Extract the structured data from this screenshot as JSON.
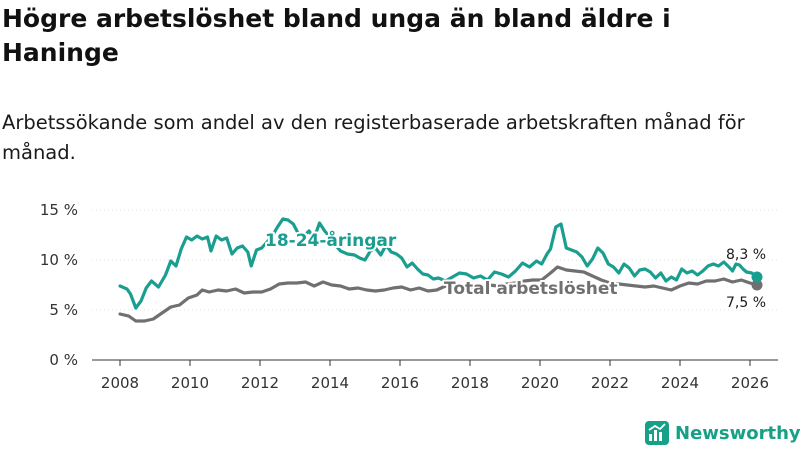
{
  "title": "Högre arbetslöshet bland unga än bland äldre i Haninge",
  "subtitle": "Arbetssökande som andel av den registerbaserade arbetskraften månad för månad.",
  "brand": {
    "name": "Newsworthy",
    "icon": "newsworthy-logo-icon",
    "color": "#16a085"
  },
  "chart_data": {
    "type": "line",
    "title": "Högre arbetslöshet bland unga än bland äldre i Haninge",
    "xlabel": "",
    "ylabel": "",
    "xlim": [
      2007.2,
      2026.8
    ],
    "ylim": [
      0,
      15
    ],
    "grid": true,
    "y_ticks": [
      0,
      5,
      10,
      15
    ],
    "y_tick_labels": [
      "0 %",
      "5 %",
      "10 %",
      "15 %"
    ],
    "x_ticks": [
      2008,
      2010,
      2012,
      2014,
      2016,
      2018,
      2020,
      2022,
      2024,
      2026
    ],
    "x_tick_labels": [
      "2008",
      "2010",
      "2012",
      "2014",
      "2016",
      "2018",
      "2020",
      "2022",
      "2024",
      "2026"
    ],
    "series": [
      {
        "name": "18-24-åringar",
        "color": "#1a9e8f",
        "end_label": "8,3 %",
        "points": [
          [
            2008.0,
            7.4
          ],
          [
            2008.2,
            7.1
          ],
          [
            2008.3,
            6.6
          ],
          [
            2008.45,
            5.2
          ],
          [
            2008.6,
            5.9
          ],
          [
            2008.75,
            7.2
          ],
          [
            2008.9,
            7.9
          ],
          [
            2009.1,
            7.3
          ],
          [
            2009.3,
            8.5
          ],
          [
            2009.45,
            9.9
          ],
          [
            2009.6,
            9.4
          ],
          [
            2009.75,
            11.1
          ],
          [
            2009.9,
            12.3
          ],
          [
            2010.05,
            12.0
          ],
          [
            2010.2,
            12.4
          ],
          [
            2010.35,
            12.1
          ],
          [
            2010.5,
            12.3
          ],
          [
            2010.6,
            10.9
          ],
          [
            2010.75,
            12.4
          ],
          [
            2010.9,
            12.0
          ],
          [
            2011.05,
            12.2
          ],
          [
            2011.2,
            10.6
          ],
          [
            2011.35,
            11.2
          ],
          [
            2011.5,
            11.4
          ],
          [
            2011.65,
            10.8
          ],
          [
            2011.75,
            9.4
          ],
          [
            2011.9,
            11.0
          ],
          [
            2012.05,
            11.2
          ],
          [
            2012.2,
            11.8
          ],
          [
            2012.35,
            12.4
          ],
          [
            2012.5,
            13.3
          ],
          [
            2012.65,
            14.1
          ],
          [
            2012.8,
            14.0
          ],
          [
            2012.95,
            13.6
          ],
          [
            2013.1,
            12.6
          ],
          [
            2013.25,
            12.4
          ],
          [
            2013.4,
            12.9
          ],
          [
            2013.55,
            12.2
          ],
          [
            2013.7,
            13.7
          ],
          [
            2013.85,
            12.9
          ],
          [
            2014.0,
            12.3
          ],
          [
            2014.15,
            11.5
          ],
          [
            2014.3,
            10.9
          ],
          [
            2014.5,
            10.6
          ],
          [
            2014.7,
            10.5
          ],
          [
            2014.85,
            10.2
          ],
          [
            2015.0,
            10.0
          ],
          [
            2015.15,
            10.9
          ],
          [
            2015.3,
            11.2
          ],
          [
            2015.45,
            10.5
          ],
          [
            2015.6,
            11.5
          ],
          [
            2015.75,
            10.8
          ],
          [
            2015.9,
            10.6
          ],
          [
            2016.05,
            10.2
          ],
          [
            2016.2,
            9.3
          ],
          [
            2016.35,
            9.7
          ],
          [
            2016.5,
            9.1
          ],
          [
            2016.65,
            8.6
          ],
          [
            2016.8,
            8.5
          ],
          [
            2016.95,
            8.1
          ],
          [
            2017.1,
            8.2
          ],
          [
            2017.3,
            7.9
          ],
          [
            2017.5,
            8.3
          ],
          [
            2017.7,
            8.7
          ],
          [
            2017.9,
            8.6
          ],
          [
            2018.1,
            8.2
          ],
          [
            2018.3,
            8.4
          ],
          [
            2018.5,
            8.0
          ],
          [
            2018.7,
            8.8
          ],
          [
            2018.9,
            8.6
          ],
          [
            2019.1,
            8.3
          ],
          [
            2019.3,
            8.9
          ],
          [
            2019.5,
            9.7
          ],
          [
            2019.7,
            9.3
          ],
          [
            2019.9,
            9.9
          ],
          [
            2020.05,
            9.6
          ],
          [
            2020.2,
            10.6
          ],
          [
            2020.3,
            11.1
          ],
          [
            2020.45,
            13.3
          ],
          [
            2020.6,
            13.6
          ],
          [
            2020.75,
            11.2
          ],
          [
            2020.9,
            11.0
          ],
          [
            2021.05,
            10.8
          ],
          [
            2021.2,
            10.3
          ],
          [
            2021.35,
            9.4
          ],
          [
            2021.5,
            10.1
          ],
          [
            2021.65,
            11.2
          ],
          [
            2021.8,
            10.7
          ],
          [
            2021.95,
            9.6
          ],
          [
            2022.1,
            9.3
          ],
          [
            2022.25,
            8.7
          ],
          [
            2022.4,
            9.6
          ],
          [
            2022.55,
            9.2
          ],
          [
            2022.7,
            8.4
          ],
          [
            2022.85,
            9.0
          ],
          [
            2023.0,
            9.1
          ],
          [
            2023.15,
            8.8
          ],
          [
            2023.3,
            8.2
          ],
          [
            2023.45,
            8.7
          ],
          [
            2023.6,
            7.9
          ],
          [
            2023.75,
            8.3
          ],
          [
            2023.9,
            8.0
          ],
          [
            2024.05,
            9.1
          ],
          [
            2024.2,
            8.7
          ],
          [
            2024.35,
            8.9
          ],
          [
            2024.5,
            8.5
          ],
          [
            2024.65,
            8.9
          ],
          [
            2024.8,
            9.4
          ],
          [
            2024.95,
            9.6
          ],
          [
            2025.1,
            9.4
          ],
          [
            2025.25,
            9.8
          ],
          [
            2025.4,
            9.3
          ],
          [
            2025.5,
            8.9
          ],
          [
            2025.6,
            9.6
          ],
          [
            2025.7,
            9.5
          ],
          [
            2025.8,
            9.1
          ],
          [
            2025.9,
            8.8
          ],
          [
            2026.05,
            8.7
          ],
          [
            2026.2,
            8.3
          ]
        ]
      },
      {
        "name": "Total arbetslöshet",
        "color": "#707070",
        "end_label": "7,5 %",
        "points": [
          [
            2008.0,
            4.6
          ],
          [
            2008.25,
            4.4
          ],
          [
            2008.45,
            3.9
          ],
          [
            2008.7,
            3.9
          ],
          [
            2008.95,
            4.1
          ],
          [
            2009.2,
            4.7
          ],
          [
            2009.45,
            5.3
          ],
          [
            2009.7,
            5.5
          ],
          [
            2009.95,
            6.2
          ],
          [
            2010.2,
            6.5
          ],
          [
            2010.35,
            7.0
          ],
          [
            2010.55,
            6.8
          ],
          [
            2010.8,
            7.0
          ],
          [
            2011.05,
            6.9
          ],
          [
            2011.3,
            7.1
          ],
          [
            2011.55,
            6.7
          ],
          [
            2011.8,
            6.8
          ],
          [
            2012.05,
            6.8
          ],
          [
            2012.3,
            7.1
          ],
          [
            2012.55,
            7.6
          ],
          [
            2012.8,
            7.7
          ],
          [
            2013.05,
            7.7
          ],
          [
            2013.3,
            7.8
          ],
          [
            2013.55,
            7.4
          ],
          [
            2013.8,
            7.8
          ],
          [
            2014.05,
            7.5
          ],
          [
            2014.3,
            7.4
          ],
          [
            2014.55,
            7.1
          ],
          [
            2014.8,
            7.2
          ],
          [
            2015.05,
            7.0
          ],
          [
            2015.3,
            6.9
          ],
          [
            2015.55,
            7.0
          ],
          [
            2015.8,
            7.2
          ],
          [
            2016.05,
            7.3
          ],
          [
            2016.3,
            7.0
          ],
          [
            2016.55,
            7.2
          ],
          [
            2016.8,
            6.9
          ],
          [
            2017.05,
            7.0
          ],
          [
            2017.3,
            7.4
          ],
          [
            2017.55,
            7.2
          ],
          [
            2017.8,
            7.3
          ],
          [
            2018.05,
            7.2
          ],
          [
            2018.3,
            7.4
          ],
          [
            2018.55,
            7.5
          ],
          [
            2018.8,
            7.4
          ],
          [
            2019.05,
            7.6
          ],
          [
            2019.3,
            7.7
          ],
          [
            2019.55,
            7.9
          ],
          [
            2019.8,
            8.0
          ],
          [
            2020.05,
            8.0
          ],
          [
            2020.3,
            8.7
          ],
          [
            2020.5,
            9.3
          ],
          [
            2020.75,
            9.0
          ],
          [
            2021.0,
            8.9
          ],
          [
            2021.25,
            8.8
          ],
          [
            2021.5,
            8.4
          ],
          [
            2021.75,
            8.0
          ],
          [
            2022.0,
            7.7
          ],
          [
            2022.25,
            7.6
          ],
          [
            2022.5,
            7.5
          ],
          [
            2022.75,
            7.4
          ],
          [
            2023.0,
            7.3
          ],
          [
            2023.25,
            7.4
          ],
          [
            2023.5,
            7.2
          ],
          [
            2023.75,
            7.0
          ],
          [
            2024.0,
            7.4
          ],
          [
            2024.25,
            7.7
          ],
          [
            2024.5,
            7.6
          ],
          [
            2024.75,
            7.9
          ],
          [
            2025.0,
            7.9
          ],
          [
            2025.25,
            8.1
          ],
          [
            2025.5,
            7.8
          ],
          [
            2025.75,
            8.0
          ],
          [
            2026.0,
            7.7
          ],
          [
            2026.2,
            7.5
          ]
        ]
      }
    ]
  }
}
